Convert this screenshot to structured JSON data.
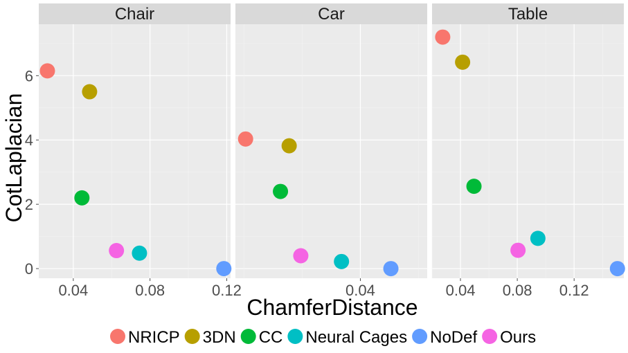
{
  "chart_data": {
    "type": "scatter",
    "xlabel": "ChamferDistance",
    "ylabel": "CotLaplacian",
    "ylim": [
      -0.3,
      7.6
    ],
    "yticks": [
      0,
      2,
      4,
      6
    ],
    "facets": [
      {
        "name": "Chair",
        "xlim": [
          0.022,
          0.122
        ],
        "xticks": [
          0.04,
          0.08,
          0.12
        ],
        "xtick_labels": [
          "0.04",
          "0.08",
          "0.12"
        ],
        "points": [
          {
            "series": "NRICP",
            "x": 0.0265,
            "y": 6.15
          },
          {
            "series": "3DN",
            "x": 0.0485,
            "y": 5.5
          },
          {
            "series": "CC",
            "x": 0.0445,
            "y": 2.2
          },
          {
            "series": "Neural Cages",
            "x": 0.0745,
            "y": 0.48
          },
          {
            "series": "NoDef",
            "x": 0.1185,
            "y": 0.0
          },
          {
            "series": "Ours",
            "x": 0.0625,
            "y": 0.56
          }
        ]
      },
      {
        "name": "Car",
        "xlim": [
          -0.003,
          0.063
        ],
        "xticks": [
          0.04
        ],
        "xtick_labels": [
          "0.04"
        ],
        "points": [
          {
            "series": "NRICP",
            "x": 0.0005,
            "y": 4.03
          },
          {
            "series": "3DN",
            "x": 0.0155,
            "y": 3.82
          },
          {
            "series": "CC",
            "x": 0.0125,
            "y": 2.4
          },
          {
            "series": "Neural Cages",
            "x": 0.0335,
            "y": 0.22
          },
          {
            "series": "NoDef",
            "x": 0.0505,
            "y": 0.0
          },
          {
            "series": "Ours",
            "x": 0.0195,
            "y": 0.4
          }
        ]
      },
      {
        "name": "Table",
        "xlim": [
          0.02,
          0.155
        ],
        "xticks": [
          0.04,
          0.08,
          0.12
        ],
        "xtick_labels": [
          "0.04",
          "0.08",
          "0.12"
        ],
        "points": [
          {
            "series": "NRICP",
            "x": 0.0275,
            "y": 7.2
          },
          {
            "series": "3DN",
            "x": 0.0415,
            "y": 6.42
          },
          {
            "series": "CC",
            "x": 0.0495,
            "y": 2.56
          },
          {
            "series": "Neural Cages",
            "x": 0.0945,
            "y": 0.94
          },
          {
            "series": "NoDef",
            "x": 0.1505,
            "y": 0.0
          },
          {
            "series": "Ours",
            "x": 0.0805,
            "y": 0.57
          }
        ]
      }
    ],
    "legend": [
      {
        "name": "NRICP",
        "color": "#F8766D"
      },
      {
        "name": "3DN",
        "color": "#B79F00"
      },
      {
        "name": "CC",
        "color": "#00BA38"
      },
      {
        "name": "Neural Cages",
        "color": "#00BFC4"
      },
      {
        "name": "NoDef",
        "color": "#619CFF"
      },
      {
        "name": "Ours",
        "color": "#F564E3"
      }
    ],
    "legend_position": "bottom",
    "grid": true
  }
}
